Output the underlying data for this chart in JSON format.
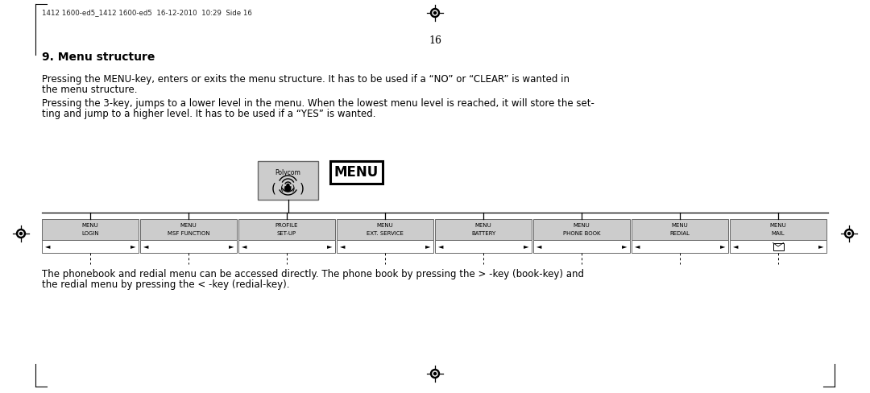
{
  "page_number": "16",
  "header_text": "1412 1600-ed5_1412 1600-ed5  16-12-2010  10:29  Side 16",
  "title": "9. Menu structure",
  "para1_line1": "Pressing the MENU-key, enters or exits the menu structure. It has to be used if a “NO” or “CLEAR” is wanted in",
  "para1_line2": "the menu structure.",
  "para2_line1": "Pressing the 3-key, jumps to a lower level in the menu. When the lowest menu level is reached, it will store the set-",
  "para2_line2": "ting and jump to a higher level. It has to be used if a “YES” is wanted.",
  "para3_line1": "The phonebook and redial menu can be accessed directly. The phone book by pressing the > -key (book-key) and",
  "para3_line2": "the redial menu by pressing the < -key (redial-key).",
  "menu_boxes": [
    {
      "line1": "MENU",
      "line2": "LOGIN",
      "has_mail": false
    },
    {
      "line1": "MENU",
      "line2": "MSF FUNCTION",
      "has_mail": false
    },
    {
      "line1": "PROFILE",
      "line2": "SET-UP",
      "has_mail": false
    },
    {
      "line1": "MENU",
      "line2": "EXT. SERVICE",
      "has_mail": false
    },
    {
      "line1": "MENU",
      "line2": "BATTERY",
      "has_mail": false
    },
    {
      "line1": "MENU",
      "line2": "PHONE BOOK",
      "has_mail": false
    },
    {
      "line1": "MENU",
      "line2": "REDIAL",
      "has_mail": false
    },
    {
      "line1": "MENU",
      "line2": "MAIL",
      "has_mail": true
    }
  ],
  "polycom_text": "Polycom",
  "menu_label": "MENU",
  "bg_color": "#ffffff",
  "box_fill": "#cccccc",
  "box_edge": "#666666",
  "text_color": "#000000",
  "title_fontsize": 10,
  "body_fontsize": 8.5,
  "small_fontsize": 6
}
